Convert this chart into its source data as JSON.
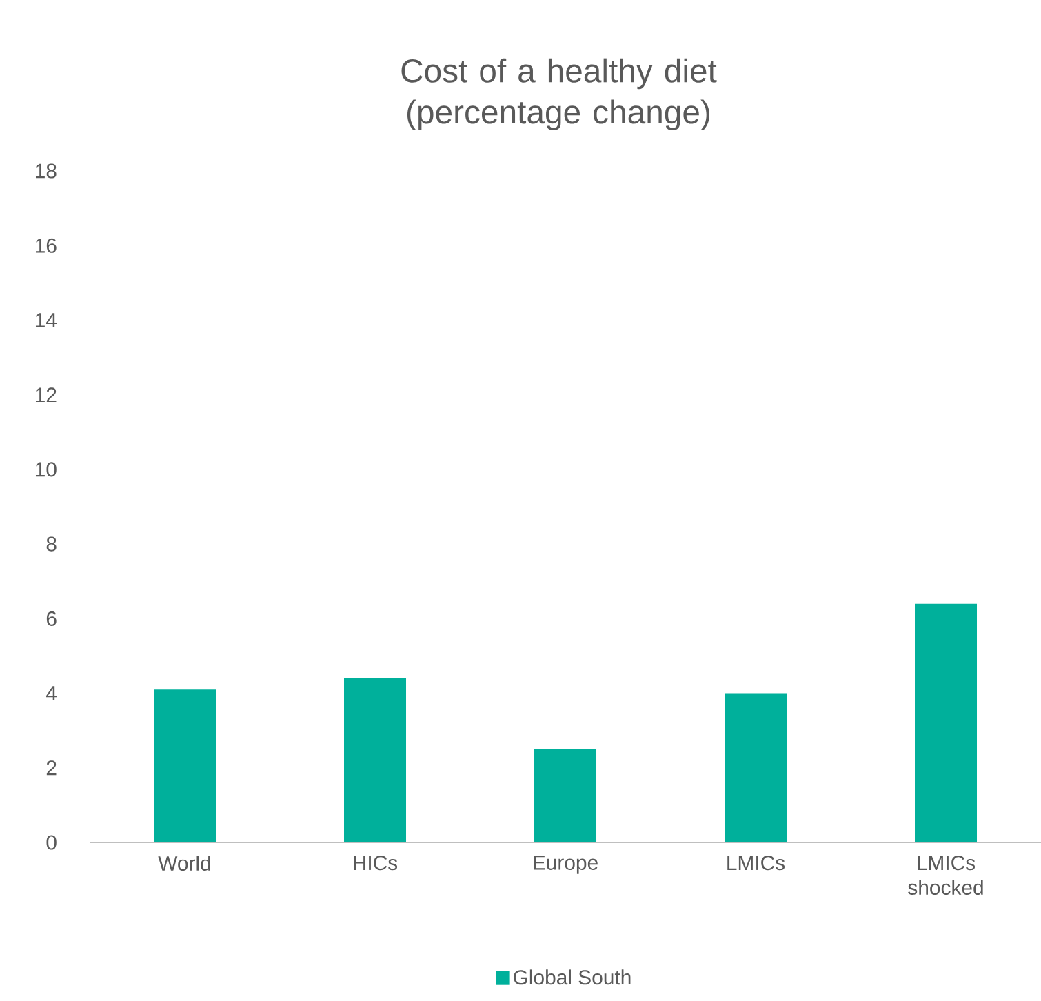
{
  "chart_data": {
    "type": "bar",
    "title": "Cost of a healthy diet (percentage change)",
    "categories": [
      "World",
      "HICs",
      "Europe",
      "LMICs",
      "LMICs shocked"
    ],
    "series": [
      {
        "name": "Global South",
        "color": "#00b09b",
        "values": [
          4.1,
          4.4,
          2.5,
          4.0,
          6.4
        ]
      }
    ],
    "ylim": [
      0,
      18
    ],
    "yticks": [
      0,
      2,
      4,
      6,
      8,
      10,
      12,
      14,
      16,
      18
    ],
    "legend": "bottom"
  }
}
